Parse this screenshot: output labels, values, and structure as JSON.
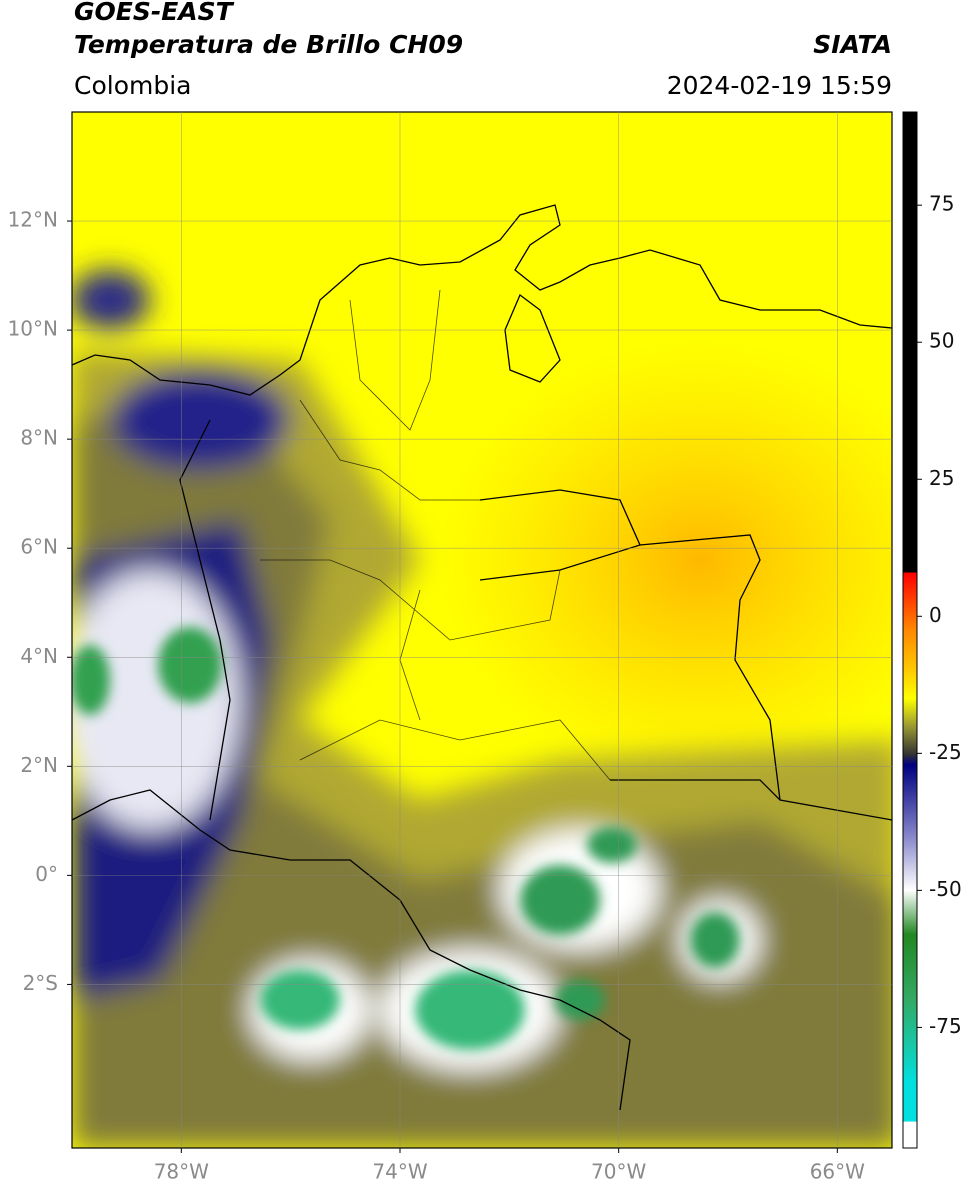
{
  "header": {
    "title_line1": "GOES-EAST",
    "title_line2": "Temperatura de Brillo CH09",
    "source": "SIATA",
    "region": "Colombia",
    "datetime": "2024-02-19 15:59"
  },
  "map": {
    "xlim": [
      -80,
      -65
    ],
    "ylim": [
      -5,
      14
    ],
    "lon_ticks": [
      {
        "value": -78,
        "label": "78°W"
      },
      {
        "value": -74,
        "label": "74°W"
      },
      {
        "value": -70,
        "label": "70°W"
      },
      {
        "value": -66,
        "label": "66°W"
      }
    ],
    "lat_ticks": [
      {
        "value": 12,
        "label": "12°N"
      },
      {
        "value": 10,
        "label": "10°N"
      },
      {
        "value": 8,
        "label": "8°N"
      },
      {
        "value": 6,
        "label": "6°N"
      },
      {
        "value": 4,
        "label": "4°N"
      },
      {
        "value": 2,
        "label": "2°N"
      },
      {
        "value": 0,
        "label": "0°"
      },
      {
        "value": -2,
        "label": "2°S"
      }
    ]
  },
  "colorbar": {
    "lim": [
      -97,
      92
    ],
    "ticks": [
      75,
      50,
      25,
      0,
      -25,
      -50,
      -75
    ]
  }
}
